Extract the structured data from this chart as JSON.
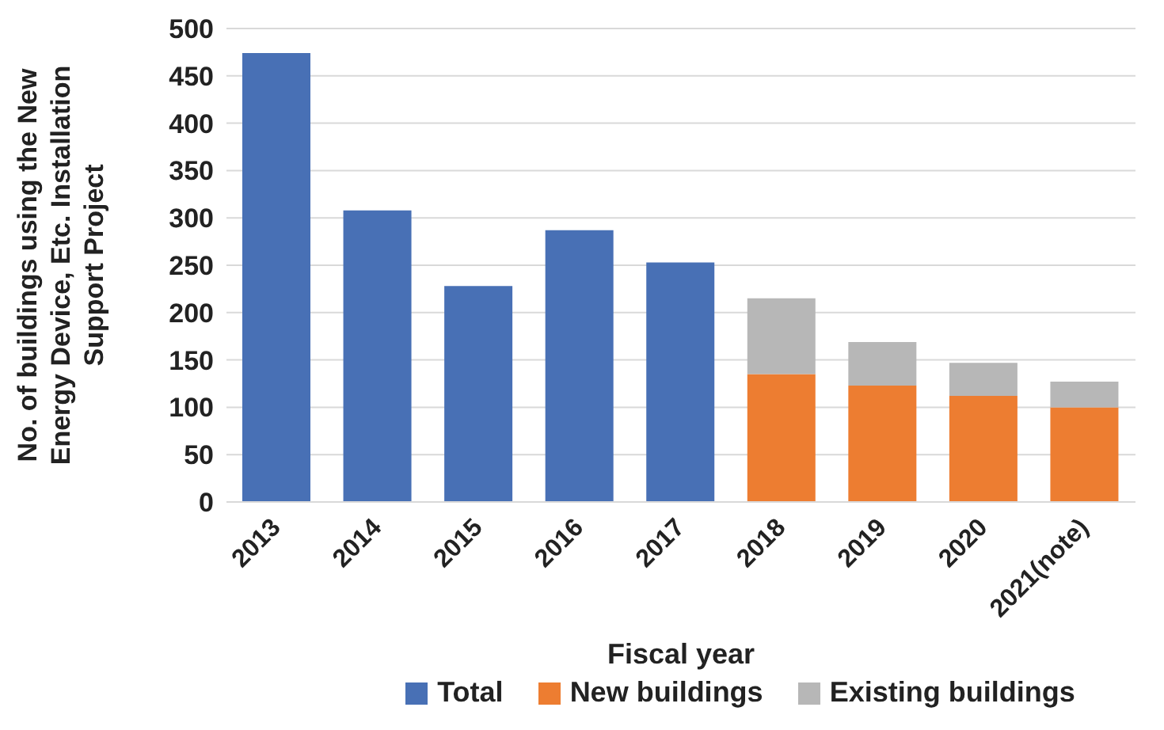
{
  "chart_data": {
    "type": "bar",
    "stacked": true,
    "xlabel": "Fiscal year",
    "ylabel": "No. of buildings using the New Energy Device, Etc. Installation Support Project",
    "categories": [
      "2013",
      "2014",
      "2015",
      "2016",
      "2017",
      "2018",
      "2019",
      "2020",
      "2021(note)"
    ],
    "series": [
      {
        "name": "Total",
        "color": "#4870b5",
        "values": [
          474,
          308,
          228,
          287,
          253,
          null,
          null,
          null,
          null
        ]
      },
      {
        "name": "New buildings",
        "color": "#ed7d31",
        "values": [
          null,
          null,
          null,
          null,
          null,
          135,
          123,
          112,
          100
        ]
      },
      {
        "name": "Existing buildings",
        "color": "#b7b7b7",
        "values": [
          null,
          null,
          null,
          null,
          null,
          80,
          46,
          35,
          27
        ]
      }
    ],
    "ylim": [
      0,
      500
    ],
    "yticks": [
      0,
      50,
      100,
      150,
      200,
      250,
      300,
      350,
      400,
      450,
      500
    ],
    "grid": "y",
    "legend": "bottom"
  }
}
